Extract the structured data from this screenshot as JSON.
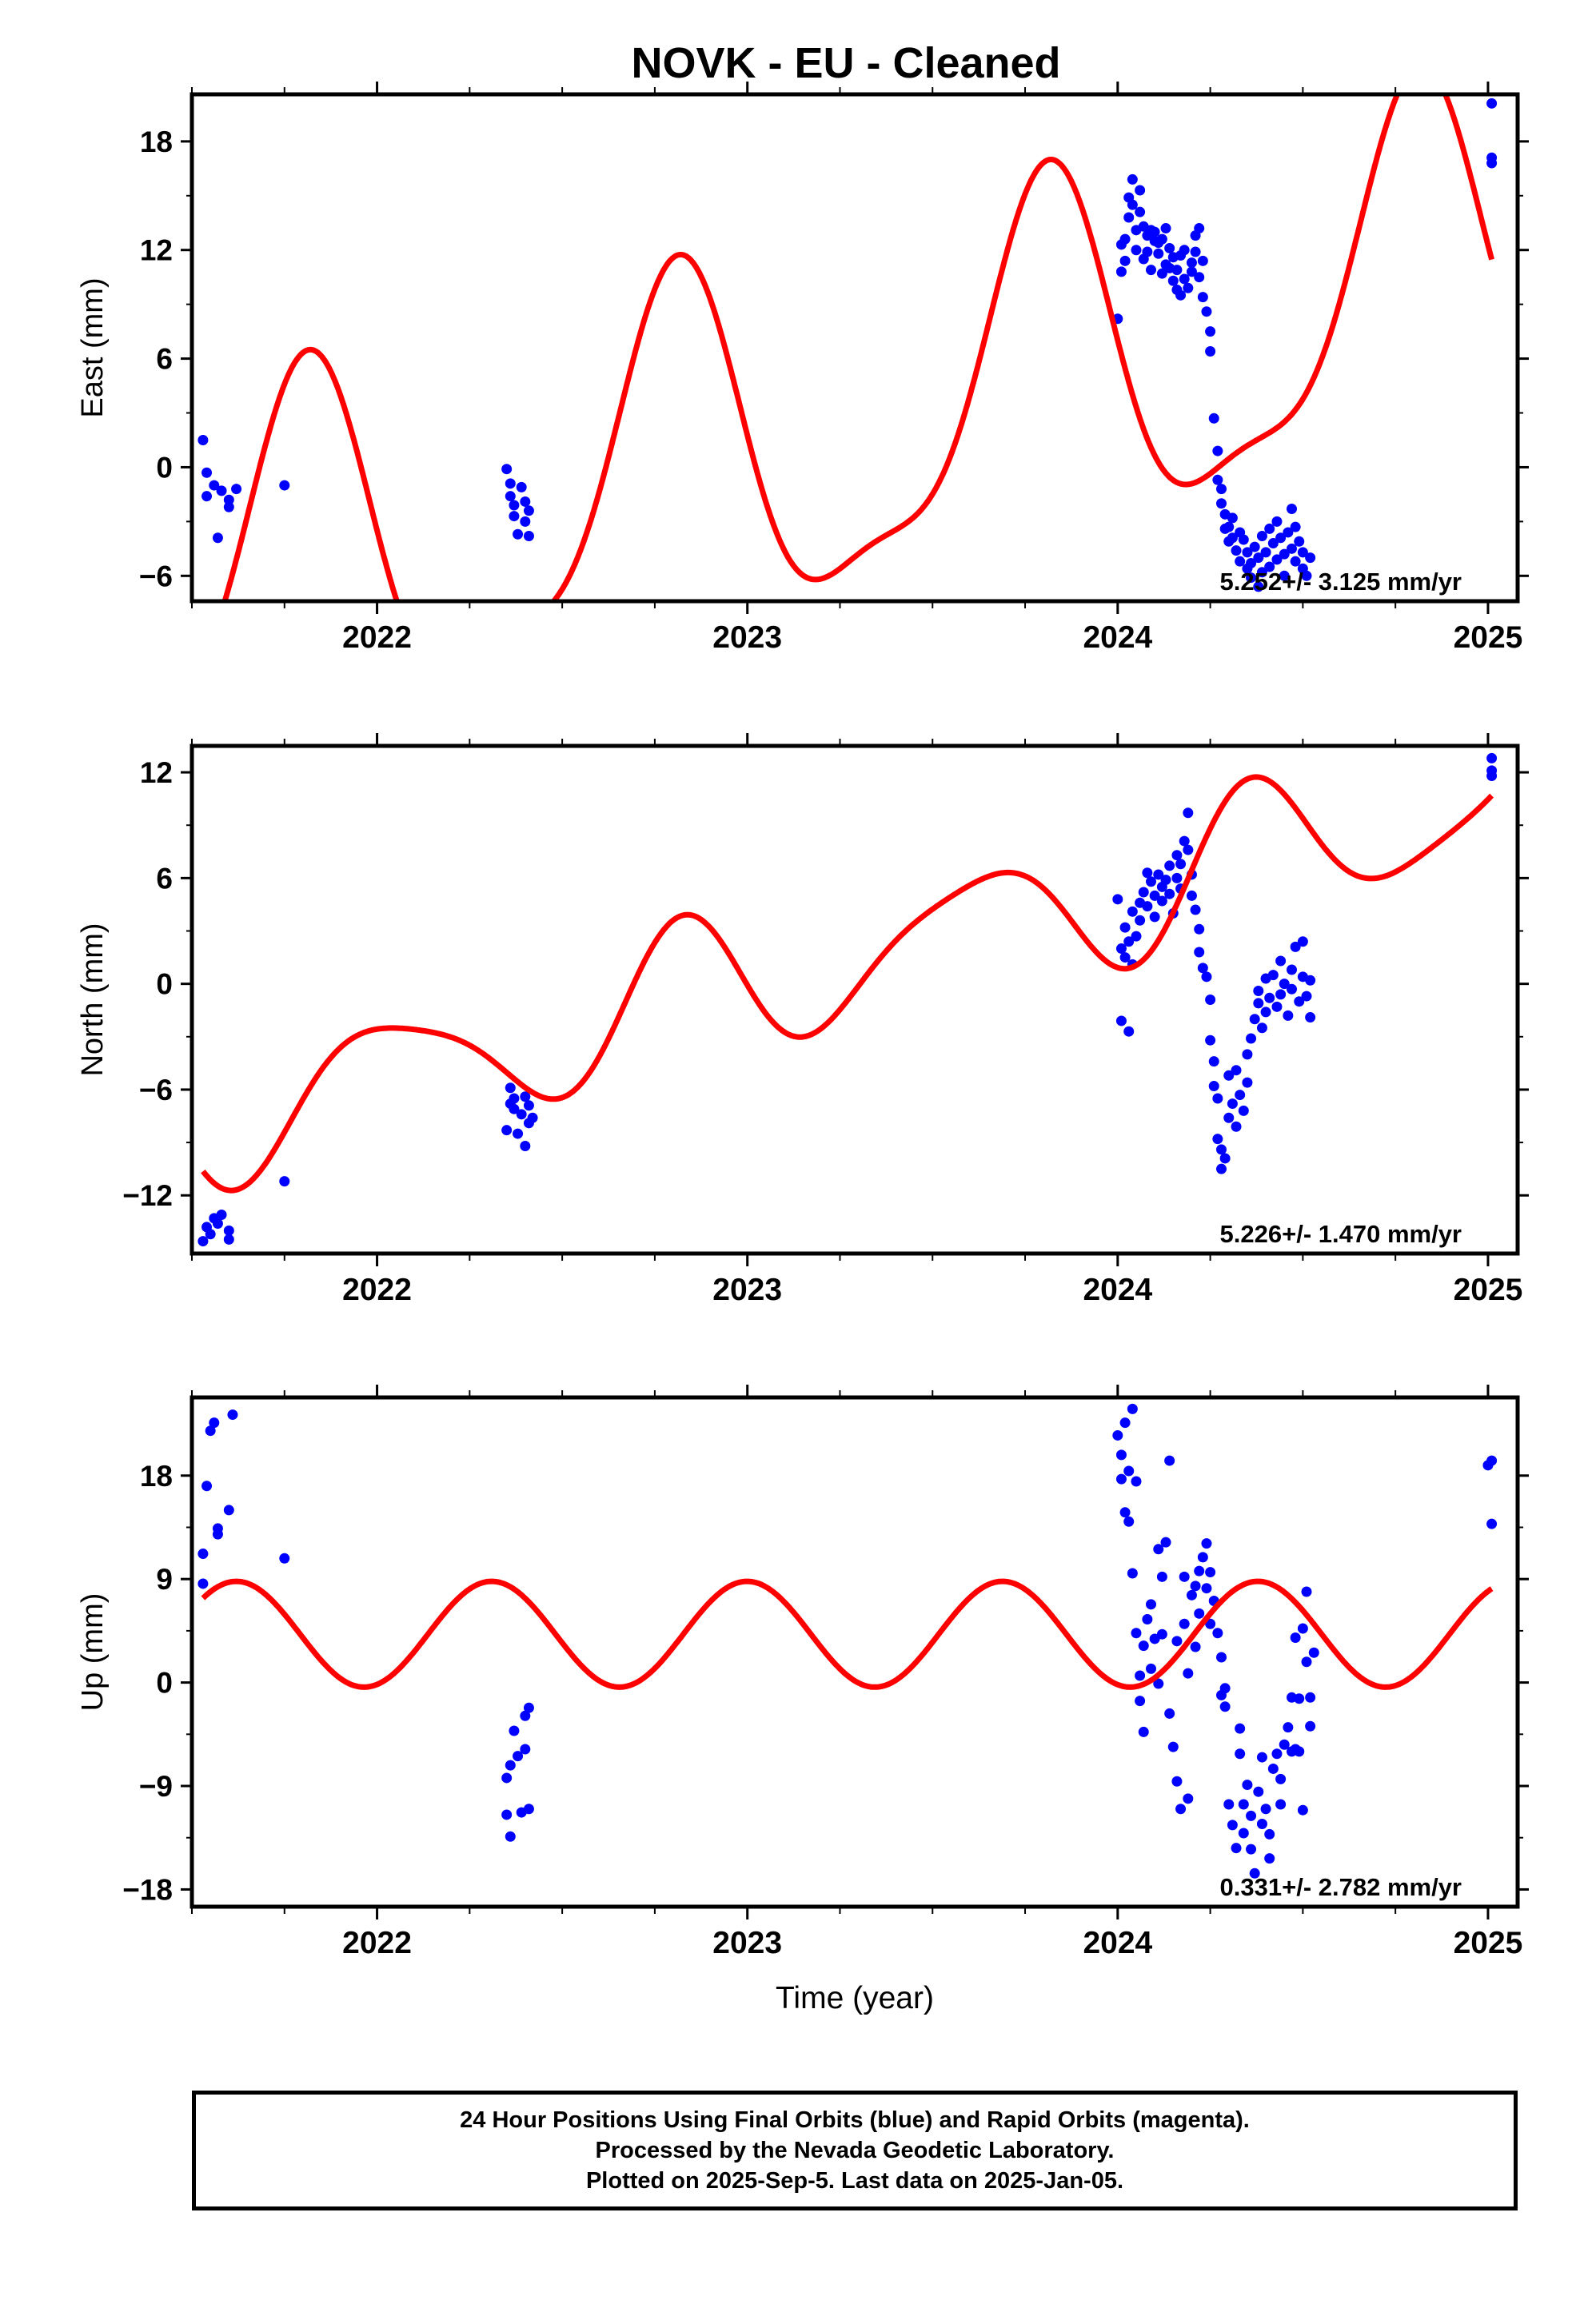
{
  "title": "NOVK  - EU - Cleaned",
  "footer": {
    "line1": "24 Hour Positions Using Final Orbits (blue) and Rapid Orbits (magenta).",
    "line2": "Processed by the Nevada Geodetic Laboratory.",
    "line3": "Plotted on 2025-Sep-5. Last data on 2025-Jan-05."
  },
  "colors": {
    "data": "#0000ff",
    "fit": "#ff0000",
    "frame": "#000000"
  },
  "chart_data": [
    {
      "type": "scatter",
      "ylabel": "East (mm)",
      "xlabel": "",
      "xlim": [
        2021.5,
        2025.08
      ],
      "ylim": [
        -7.4,
        20.6
      ],
      "yticks": [
        18,
        12,
        6,
        0,
        -6
      ],
      "xticks": [
        2022,
        2023,
        2024,
        2025
      ],
      "rate_label": "5.252+/- 3.125 mm/yr",
      "points": [
        [
          2021.53,
          1.5
        ],
        [
          2021.54,
          -0.3
        ],
        [
          2021.54,
          -1.6
        ],
        [
          2021.56,
          -1.0
        ],
        [
          2021.57,
          -3.9
        ],
        [
          2021.58,
          -1.3
        ],
        [
          2021.6,
          -1.8
        ],
        [
          2021.6,
          -2.2
        ],
        [
          2021.62,
          -1.2
        ],
        [
          2021.75,
          -1.0
        ],
        [
          2022.35,
          -0.1
        ],
        [
          2022.36,
          -0.9
        ],
        [
          2022.36,
          -1.6
        ],
        [
          2022.37,
          -2.1
        ],
        [
          2022.37,
          -2.7
        ],
        [
          2022.38,
          -3.7
        ],
        [
          2022.39,
          -1.1
        ],
        [
          2022.4,
          -1.9
        ],
        [
          2022.4,
          -3.0
        ],
        [
          2022.41,
          -3.8
        ],
        [
          2022.41,
          -2.4
        ],
        [
          2024.0,
          8.2
        ],
        [
          2024.01,
          10.8
        ],
        [
          2024.01,
          12.3
        ],
        [
          2024.02,
          11.4
        ],
        [
          2024.02,
          12.6
        ],
        [
          2024.03,
          13.8
        ],
        [
          2024.03,
          14.9
        ],
        [
          2024.04,
          15.9
        ],
        [
          2024.04,
          14.5
        ],
        [
          2024.05,
          13.1
        ],
        [
          2024.05,
          12.0
        ],
        [
          2024.06,
          15.3
        ],
        [
          2024.06,
          14.1
        ],
        [
          2024.07,
          13.3
        ],
        [
          2024.07,
          11.5
        ],
        [
          2024.08,
          12.8
        ],
        [
          2024.08,
          11.9
        ],
        [
          2024.09,
          13.1
        ],
        [
          2024.09,
          10.9
        ],
        [
          2024.1,
          12.5
        ],
        [
          2024.1,
          13.0
        ],
        [
          2024.11,
          11.8
        ],
        [
          2024.11,
          12.4
        ],
        [
          2024.12,
          12.6
        ],
        [
          2024.12,
          10.7
        ],
        [
          2024.13,
          11.2
        ],
        [
          2024.13,
          13.2
        ],
        [
          2024.14,
          12.1
        ],
        [
          2024.14,
          11.0
        ],
        [
          2024.15,
          10.3
        ],
        [
          2024.15,
          11.6
        ],
        [
          2024.16,
          9.8
        ],
        [
          2024.16,
          10.9
        ],
        [
          2024.17,
          11.7
        ],
        [
          2024.17,
          9.5
        ],
        [
          2024.18,
          10.4
        ],
        [
          2024.18,
          12.0
        ],
        [
          2024.19,
          9.9
        ],
        [
          2024.2,
          10.8
        ],
        [
          2024.2,
          11.3
        ],
        [
          2024.21,
          12.8
        ],
        [
          2024.21,
          11.9
        ],
        [
          2024.22,
          13.2
        ],
        [
          2024.22,
          10.5
        ],
        [
          2024.23,
          11.4
        ],
        [
          2024.23,
          9.4
        ],
        [
          2024.24,
          8.6
        ],
        [
          2024.25,
          7.5
        ],
        [
          2024.25,
          6.4
        ],
        [
          2024.26,
          2.7
        ],
        [
          2024.27,
          0.9
        ],
        [
          2024.27,
          -0.7
        ],
        [
          2024.28,
          -1.2
        ],
        [
          2024.28,
          -2.0
        ],
        [
          2024.29,
          -3.4
        ],
        [
          2024.29,
          -2.6
        ],
        [
          2024.3,
          -4.1
        ],
        [
          2024.3,
          -3.3
        ],
        [
          2024.31,
          -3.9
        ],
        [
          2024.31,
          -2.8
        ],
        [
          2024.32,
          -4.6
        ],
        [
          2024.33,
          -3.6
        ],
        [
          2024.33,
          -5.2
        ],
        [
          2024.34,
          -4.0
        ],
        [
          2024.35,
          -5.6
        ],
        [
          2024.35,
          -4.7
        ],
        [
          2024.36,
          -6.1
        ],
        [
          2024.36,
          -5.3
        ],
        [
          2024.37,
          -4.4
        ],
        [
          2024.38,
          -6.6
        ],
        [
          2024.38,
          -5.0
        ],
        [
          2024.39,
          -5.8
        ],
        [
          2024.39,
          -3.8
        ],
        [
          2024.4,
          -4.7
        ],
        [
          2024.41,
          -5.5
        ],
        [
          2024.41,
          -3.4
        ],
        [
          2024.42,
          -4.2
        ],
        [
          2024.43,
          -5.1
        ],
        [
          2024.43,
          -3.0
        ],
        [
          2024.44,
          -3.9
        ],
        [
          2024.45,
          -4.8
        ],
        [
          2024.45,
          -6.0
        ],
        [
          2024.46,
          -3.6
        ],
        [
          2024.47,
          -4.5
        ],
        [
          2024.47,
          -2.3
        ],
        [
          2024.48,
          -3.3
        ],
        [
          2024.48,
          -5.2
        ],
        [
          2024.49,
          -4.1
        ],
        [
          2024.5,
          -5.6
        ],
        [
          2024.5,
          -4.7
        ],
        [
          2024.51,
          -6.0
        ],
        [
          2024.52,
          -5.0
        ],
        [
          2025.01,
          16.8
        ],
        [
          2025.01,
          17.1
        ],
        [
          2025.01,
          20.1
        ]
      ],
      "fit_rate": 5.252,
      "fit_offset": 3.1
    },
    {
      "type": "scatter",
      "ylabel": "North (mm)",
      "xlabel": "",
      "xlim": [
        2021.5,
        2025.08
      ],
      "ylim": [
        -15.3,
        13.5
      ],
      "yticks": [
        12,
        6,
        0,
        -6,
        -12
      ],
      "xticks": [
        2022,
        2023,
        2024,
        2025
      ],
      "rate_label": "5.226+/- 1.470 mm/yr",
      "points": [
        [
          2021.53,
          -14.6
        ],
        [
          2021.54,
          -13.8
        ],
        [
          2021.55,
          -14.2
        ],
        [
          2021.56,
          -13.3
        ],
        [
          2021.57,
          -13.6
        ],
        [
          2021.58,
          -13.1
        ],
        [
          2021.6,
          -14.0
        ],
        [
          2021.6,
          -14.5
        ],
        [
          2021.75,
          -11.2
        ],
        [
          2022.35,
          -8.3
        ],
        [
          2022.36,
          -6.8
        ],
        [
          2022.36,
          -5.9
        ],
        [
          2022.37,
          -7.1
        ],
        [
          2022.37,
          -6.5
        ],
        [
          2022.38,
          -8.5
        ],
        [
          2022.39,
          -7.4
        ],
        [
          2022.4,
          -6.4
        ],
        [
          2022.4,
          -9.2
        ],
        [
          2022.41,
          -7.9
        ],
        [
          2022.41,
          -6.9
        ],
        [
          2022.42,
          -7.6
        ],
        [
          2024.0,
          4.8
        ],
        [
          2024.01,
          2.0
        ],
        [
          2024.01,
          -2.1
        ],
        [
          2024.02,
          1.5
        ],
        [
          2024.02,
          3.2
        ],
        [
          2024.03,
          2.4
        ],
        [
          2024.03,
          -2.7
        ],
        [
          2024.04,
          1.1
        ],
        [
          2024.04,
          4.1
        ],
        [
          2024.05,
          2.7
        ],
        [
          2024.06,
          3.6
        ],
        [
          2024.06,
          4.6
        ],
        [
          2024.07,
          5.2
        ],
        [
          2024.08,
          6.3
        ],
        [
          2024.08,
          4.4
        ],
        [
          2024.09,
          5.8
        ],
        [
          2024.1,
          5.0
        ],
        [
          2024.1,
          3.8
        ],
        [
          2024.11,
          6.2
        ],
        [
          2024.12,
          5.5
        ],
        [
          2024.12,
          4.7
        ],
        [
          2024.13,
          5.9
        ],
        [
          2024.14,
          6.7
        ],
        [
          2024.14,
          5.1
        ],
        [
          2024.15,
          4.0
        ],
        [
          2024.16,
          6.0
        ],
        [
          2024.16,
          7.3
        ],
        [
          2024.17,
          5.4
        ],
        [
          2024.17,
          6.8
        ],
        [
          2024.18,
          8.1
        ],
        [
          2024.19,
          7.6
        ],
        [
          2024.19,
          9.7
        ],
        [
          2024.2,
          6.2
        ],
        [
          2024.2,
          5.0
        ],
        [
          2024.21,
          4.2
        ],
        [
          2024.22,
          3.1
        ],
        [
          2024.22,
          1.8
        ],
        [
          2024.23,
          0.9
        ],
        [
          2024.24,
          0.4
        ],
        [
          2024.25,
          -0.9
        ],
        [
          2024.25,
          -3.2
        ],
        [
          2024.26,
          -4.4
        ],
        [
          2024.26,
          -5.8
        ],
        [
          2024.27,
          -6.5
        ],
        [
          2024.27,
          -8.8
        ],
        [
          2024.28,
          -9.4
        ],
        [
          2024.28,
          -10.5
        ],
        [
          2024.29,
          -9.9
        ],
        [
          2024.3,
          -7.6
        ],
        [
          2024.3,
          -5.2
        ],
        [
          2024.31,
          -6.8
        ],
        [
          2024.32,
          -8.1
        ],
        [
          2024.32,
          -4.9
        ],
        [
          2024.33,
          -6.3
        ],
        [
          2024.34,
          -7.2
        ],
        [
          2024.35,
          -5.6
        ],
        [
          2024.35,
          -4.0
        ],
        [
          2024.36,
          -3.1
        ],
        [
          2024.37,
          -2.0
        ],
        [
          2024.38,
          -1.1
        ],
        [
          2024.38,
          -0.4
        ],
        [
          2024.39,
          -2.5
        ],
        [
          2024.4,
          0.3
        ],
        [
          2024.4,
          -1.6
        ],
        [
          2024.41,
          -0.8
        ],
        [
          2024.42,
          0.5
        ],
        [
          2024.43,
          -1.3
        ],
        [
          2024.44,
          1.3
        ],
        [
          2024.44,
          -0.6
        ],
        [
          2024.45,
          0.0
        ],
        [
          2024.46,
          -1.8
        ],
        [
          2024.47,
          0.8
        ],
        [
          2024.47,
          -0.3
        ],
        [
          2024.48,
          2.1
        ],
        [
          2024.49,
          -1.0
        ],
        [
          2024.5,
          0.4
        ],
        [
          2024.5,
          2.4
        ],
        [
          2024.51,
          -0.7
        ],
        [
          2024.52,
          0.2
        ],
        [
          2024.52,
          -1.9
        ],
        [
          2025.01,
          11.8
        ],
        [
          2025.01,
          12.1
        ],
        [
          2025.01,
          12.8
        ]
      ],
      "fit_rate": 5.226,
      "fit_offset": 0.0
    },
    {
      "type": "scatter",
      "ylabel": "Up (mm)",
      "xlabel": "Time (year)",
      "xlim": [
        2021.5,
        2025.08
      ],
      "ylim": [
        -19.5,
        24.8
      ],
      "yticks": [
        18,
        9,
        0,
        -9,
        -18
      ],
      "xticks": [
        2022,
        2023,
        2024,
        2025
      ],
      "rate_label": "0.331+/- 2.782 mm/yr",
      "points": [
        [
          2021.53,
          8.6
        ],
        [
          2021.53,
          11.2
        ],
        [
          2021.54,
          17.1
        ],
        [
          2021.55,
          21.9
        ],
        [
          2021.56,
          22.6
        ],
        [
          2021.57,
          13.4
        ],
        [
          2021.57,
          12.9
        ],
        [
          2021.6,
          15.0
        ],
        [
          2021.61,
          23.3
        ],
        [
          2021.75,
          10.8
        ],
        [
          2022.35,
          -8.3
        ],
        [
          2022.35,
          -11.5
        ],
        [
          2022.36,
          -7.2
        ],
        [
          2022.36,
          -13.4
        ],
        [
          2022.37,
          -4.2
        ],
        [
          2022.38,
          -6.4
        ],
        [
          2022.39,
          -11.3
        ],
        [
          2022.4,
          -2.9
        ],
        [
          2022.4,
          -5.8
        ],
        [
          2022.41,
          -2.2
        ],
        [
          2022.41,
          -11.0
        ],
        [
          2024.0,
          21.5
        ],
        [
          2024.01,
          19.8
        ],
        [
          2024.01,
          17.7
        ],
        [
          2024.02,
          14.8
        ],
        [
          2024.02,
          22.6
        ],
        [
          2024.03,
          18.4
        ],
        [
          2024.03,
          14.0
        ],
        [
          2024.04,
          9.5
        ],
        [
          2024.04,
          23.8
        ],
        [
          2024.05,
          4.3
        ],
        [
          2024.05,
          17.5
        ],
        [
          2024.06,
          0.6
        ],
        [
          2024.06,
          -1.6
        ],
        [
          2024.07,
          -4.3
        ],
        [
          2024.07,
          3.2
        ],
        [
          2024.08,
          5.5
        ],
        [
          2024.09,
          1.2
        ],
        [
          2024.09,
          6.8
        ],
        [
          2024.1,
          3.8
        ],
        [
          2024.11,
          -0.1
        ],
        [
          2024.11,
          11.6
        ],
        [
          2024.12,
          9.2
        ],
        [
          2024.12,
          4.2
        ],
        [
          2024.13,
          12.2
        ],
        [
          2024.14,
          -2.7
        ],
        [
          2024.14,
          19.3
        ],
        [
          2024.15,
          -5.6
        ],
        [
          2024.16,
          3.6
        ],
        [
          2024.16,
          -8.6
        ],
        [
          2024.17,
          -11.0
        ],
        [
          2024.18,
          5.1
        ],
        [
          2024.18,
          9.2
        ],
        [
          2024.19,
          -10.1
        ],
        [
          2024.19,
          0.8
        ],
        [
          2024.2,
          7.6
        ],
        [
          2024.21,
          8.4
        ],
        [
          2024.21,
          3.1
        ],
        [
          2024.22,
          9.7
        ],
        [
          2024.22,
          6.0
        ],
        [
          2024.23,
          10.9
        ],
        [
          2024.24,
          8.2
        ],
        [
          2024.24,
          12.1
        ],
        [
          2024.25,
          5.1
        ],
        [
          2024.25,
          9.6
        ],
        [
          2024.26,
          7.1
        ],
        [
          2024.27,
          4.3
        ],
        [
          2024.28,
          2.2
        ],
        [
          2024.28,
          -1.1
        ],
        [
          2024.29,
          -0.5
        ],
        [
          2024.29,
          -2.1
        ],
        [
          2024.3,
          -10.6
        ],
        [
          2024.31,
          -12.4
        ],
        [
          2024.32,
          -14.4
        ],
        [
          2024.33,
          -6.2
        ],
        [
          2024.33,
          -4.0
        ],
        [
          2024.34,
          -10.6
        ],
        [
          2024.34,
          -13.1
        ],
        [
          2024.35,
          -8.9
        ],
        [
          2024.36,
          -11.6
        ],
        [
          2024.36,
          -14.5
        ],
        [
          2024.37,
          -16.6
        ],
        [
          2024.38,
          -9.5
        ],
        [
          2024.39,
          -12.3
        ],
        [
          2024.39,
          -6.5
        ],
        [
          2024.4,
          -11.0
        ],
        [
          2024.41,
          -13.2
        ],
        [
          2024.41,
          -15.3
        ],
        [
          2024.42,
          -7.5
        ],
        [
          2024.43,
          -6.2
        ],
        [
          2024.44,
          -8.4
        ],
        [
          2024.44,
          -10.6
        ],
        [
          2024.45,
          -5.4
        ],
        [
          2024.46,
          -3.9
        ],
        [
          2024.47,
          -6.0
        ],
        [
          2024.47,
          -1.3
        ],
        [
          2024.48,
          -5.8
        ],
        [
          2024.48,
          3.9
        ],
        [
          2024.49,
          -1.4
        ],
        [
          2024.49,
          -6.0
        ],
        [
          2024.5,
          4.7
        ],
        [
          2024.5,
          -11.1
        ],
        [
          2024.51,
          1.8
        ],
        [
          2024.51,
          7.9
        ],
        [
          2024.52,
          -1.3
        ],
        [
          2024.52,
          -3.8
        ],
        [
          2024.53,
          2.6
        ],
        [
          2025.0,
          18.9
        ],
        [
          2025.01,
          19.3
        ],
        [
          2025.01,
          13.8
        ]
      ],
      "fit_rate": 0.331,
      "fit_offset": 1.0
    }
  ]
}
